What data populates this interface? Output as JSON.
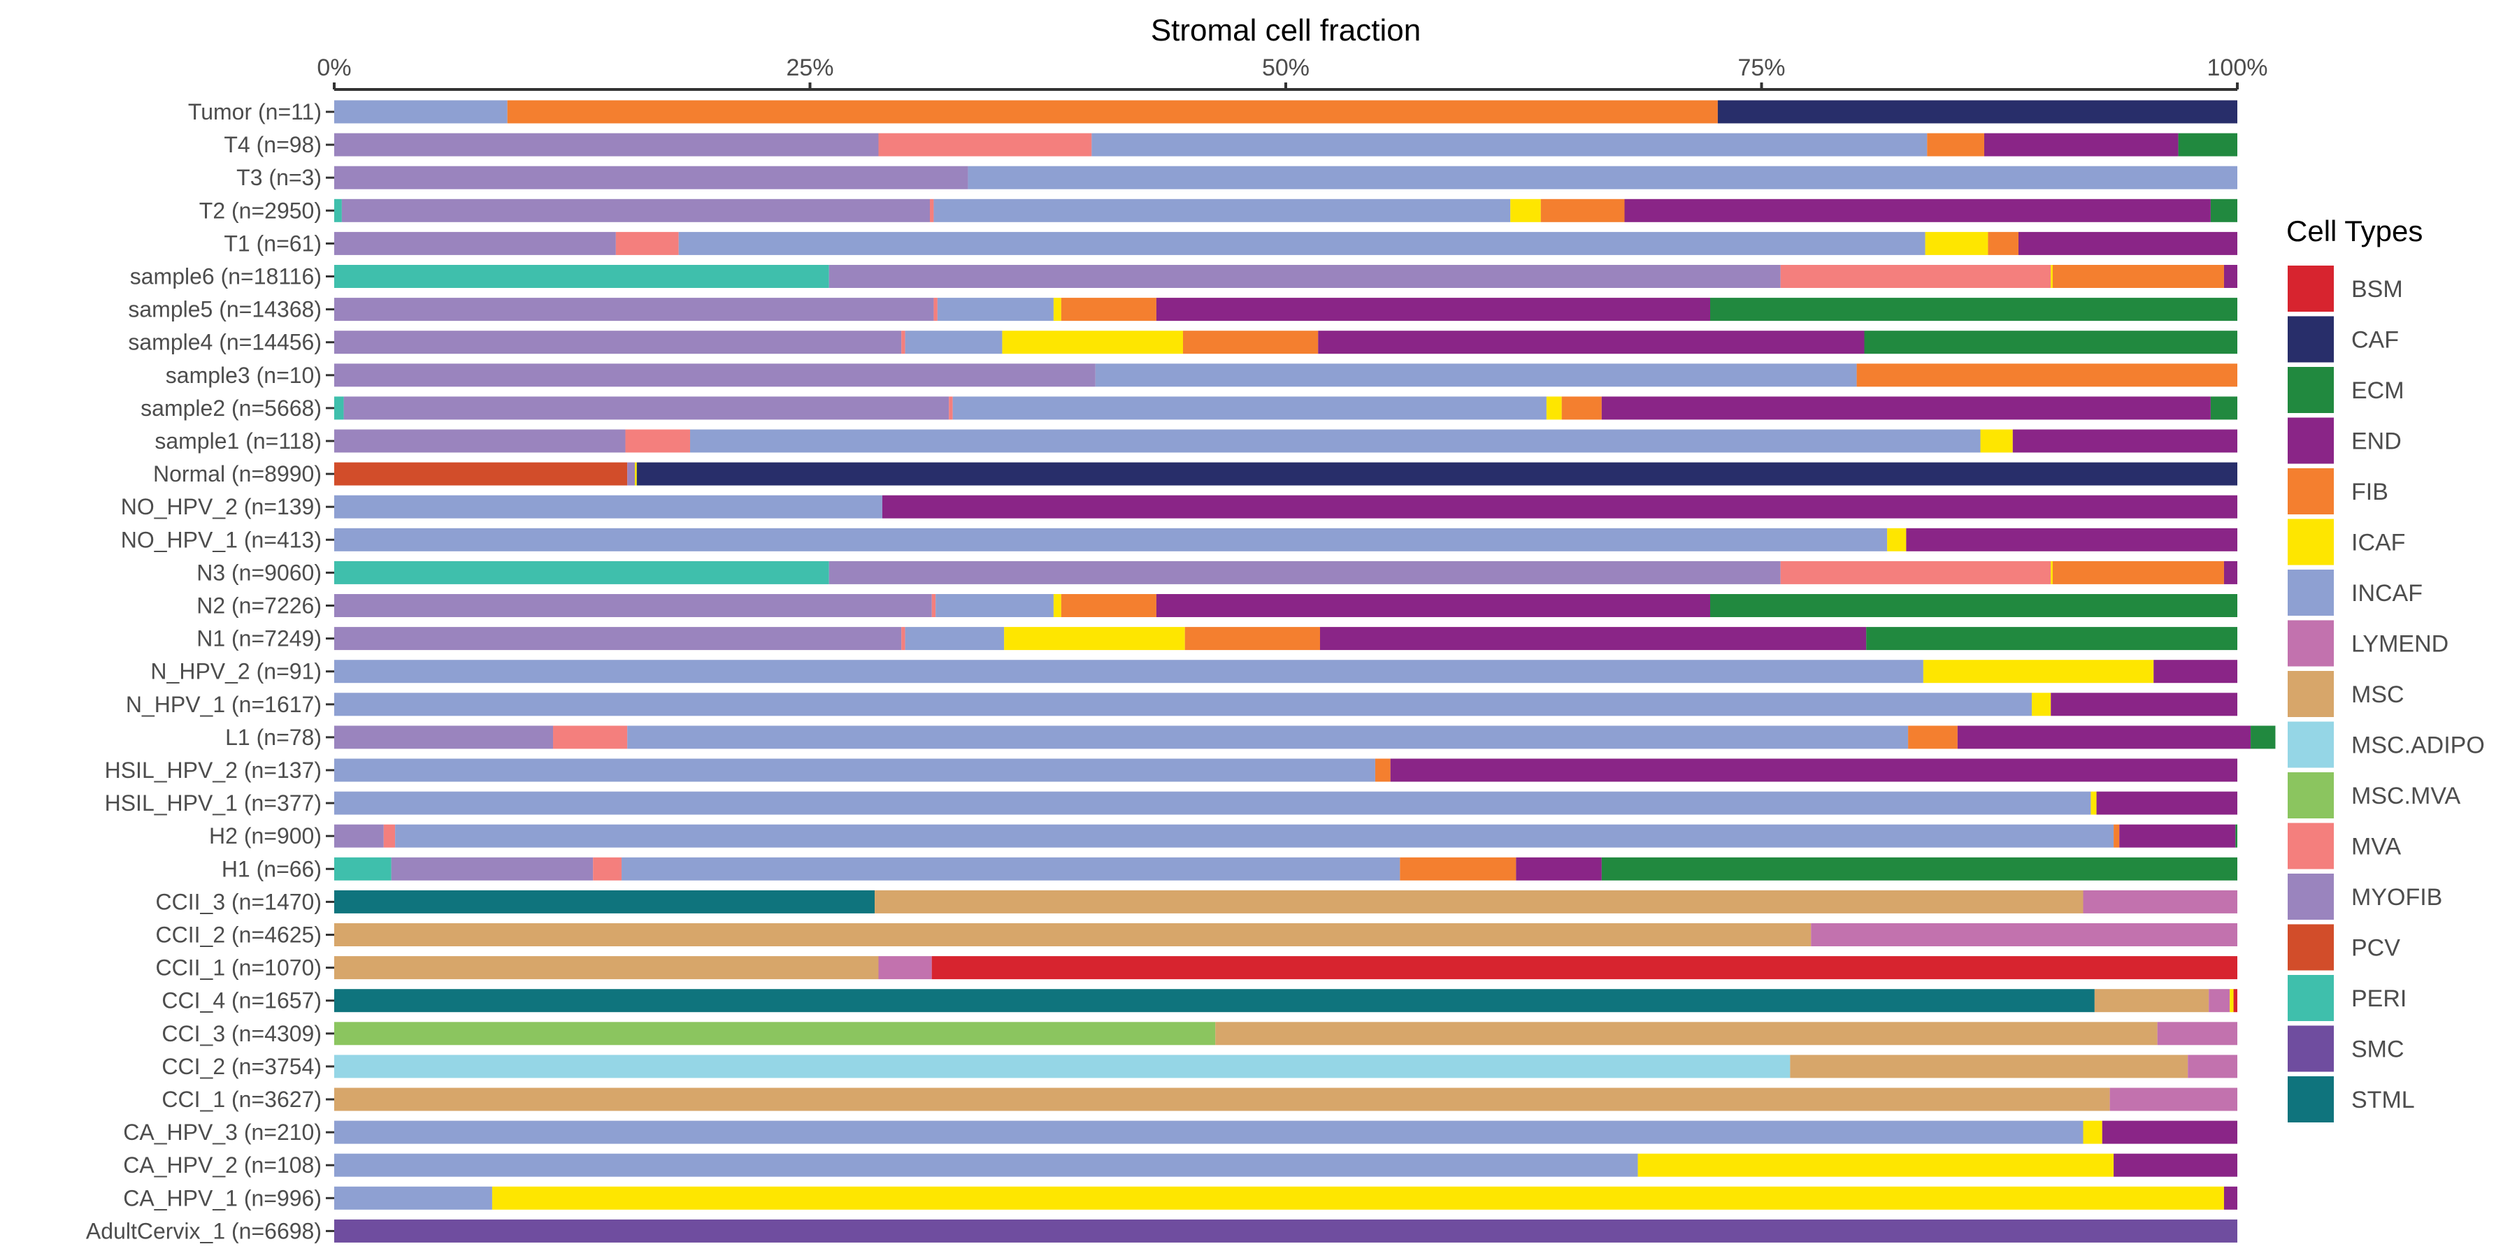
{
  "chart_data": {
    "type": "bar",
    "orientation": "horizontal",
    "stacked": true,
    "title": "Stromal cell fraction",
    "axis_position": "top",
    "xlim": [
      0,
      100
    ],
    "x_ticks": [
      0,
      25,
      50,
      75,
      100
    ],
    "x_tick_labels": [
      "0%",
      "25%",
      "50%",
      "75%",
      "100%"
    ],
    "legend": {
      "title": "Cell Types",
      "position": "right",
      "entries": [
        {
          "name": "BSM",
          "color": "#d7242f"
        },
        {
          "name": "CAF",
          "color": "#282e6a"
        },
        {
          "name": "ECM",
          "color": "#21893f"
        },
        {
          "name": "END",
          "color": "#8a2587"
        },
        {
          "name": "FIB",
          "color": "#f47f2f"
        },
        {
          "name": "ICAF",
          "color": "#fee600"
        },
        {
          "name": "INCAF",
          "color": "#8ea0d2"
        },
        {
          "name": "LYMEND",
          "color": "#c272ae"
        },
        {
          "name": "MSC",
          "color": "#d7a66a"
        },
        {
          "name": "MSC.ADIPO",
          "color": "#95d6e6"
        },
        {
          "name": "MSC.MVA",
          "color": "#8bc55f"
        },
        {
          "name": "MVA",
          "color": "#f47f7d"
        },
        {
          "name": "MYOFIB",
          "color": "#9a84be"
        },
        {
          "name": "PCV",
          "color": "#d24d2a"
        },
        {
          "name": "PERI",
          "color": "#3fbfac"
        },
        {
          "name": "SMC",
          "color": "#6f4d9f"
        },
        {
          "name": "STML",
          "color": "#0f747d"
        }
      ]
    },
    "categories": [
      "Tumor (n=11)",
      "T4 (n=98)",
      "T3 (n=3)",
      "T2 (n=2950)",
      "T1 (n=61)",
      "sample6 (n=18116)",
      "sample5 (n=14368)",
      "sample4 (n=14456)",
      "sample3 (n=10)",
      "sample2 (n=5668)",
      "sample1 (n=118)",
      "Normal (n=8990)",
      "NO_HPV_2 (n=139)",
      "NO_HPV_1 (n=413)",
      "N3 (n=9060)",
      "N2 (n=7226)",
      "N1 (n=7249)",
      "N_HPV_2 (n=91)",
      "N_HPV_1 (n=1617)",
      "L1 (n=78)",
      "HSIL_HPV_2 (n=137)",
      "HSIL_HPV_1 (n=377)",
      "H2 (n=900)",
      "H1 (n=66)",
      "CCII_3 (n=1470)",
      "CCII_2 (n=4625)",
      "CCII_1 (n=1070)",
      "CCI_4 (n=1657)",
      "CCI_3 (n=4309)",
      "CCI_2 (n=3754)",
      "CCI_1 (n=3627)",
      "CA_HPV_3 (n=210)",
      "CA_HPV_2 (n=108)",
      "CA_HPV_1 (n=996)",
      "AdultCervix_1 (n=6698)"
    ],
    "bars": [
      [
        [
          "INCAF",
          9.1
        ],
        [
          "FIB",
          63.6
        ],
        [
          "CAF",
          27.3
        ]
      ],
      [
        [
          "MYOFIB",
          28.6
        ],
        [
          "MVA",
          11.2
        ],
        [
          "INCAF",
          43.9
        ],
        [
          "FIB",
          3.0
        ],
        [
          "END",
          10.2
        ],
        [
          "ECM",
          3.1
        ]
      ],
      [
        [
          "MYOFIB",
          33.3
        ],
        [
          "INCAF",
          66.7
        ]
      ],
      [
        [
          "PERI",
          0.4
        ],
        [
          "MYOFIB",
          30.9
        ],
        [
          "MVA",
          0.2
        ],
        [
          "INCAF",
          30.3
        ],
        [
          "ICAF",
          1.6
        ],
        [
          "FIB",
          4.4
        ],
        [
          "END",
          30.8
        ],
        [
          "ECM",
          1.4
        ]
      ],
      [
        [
          "MYOFIB",
          14.8
        ],
        [
          "MVA",
          3.3
        ],
        [
          "INCAF",
          65.5
        ],
        [
          "ICAF",
          3.3
        ],
        [
          "FIB",
          1.6
        ],
        [
          "END",
          11.5
        ]
      ],
      [
        [
          "PERI",
          26.0
        ],
        [
          "MYOFIB",
          50.0
        ],
        [
          "MVA",
          14.2
        ],
        [
          "ICAF",
          0.1
        ],
        [
          "FIB",
          9.0
        ],
        [
          "END",
          0.7
        ]
      ],
      [
        [
          "MYOFIB",
          31.5
        ],
        [
          "MVA",
          0.2
        ],
        [
          "INCAF",
          6.1
        ],
        [
          "ICAF",
          0.4
        ],
        [
          "FIB",
          5.0
        ],
        [
          "END",
          29.1
        ],
        [
          "ECM",
          27.7
        ]
      ],
      [
        [
          "MYOFIB",
          29.8
        ],
        [
          "MVA",
          0.2
        ],
        [
          "INCAF",
          5.1
        ],
        [
          "ICAF",
          9.5
        ],
        [
          "FIB",
          7.1
        ],
        [
          "END",
          28.7
        ],
        [
          "ECM",
          19.6
        ]
      ],
      [
        [
          "MYOFIB",
          40.0
        ],
        [
          "INCAF",
          40.0
        ],
        [
          "FIB",
          20.0
        ]
      ],
      [
        [
          "PERI",
          0.5
        ],
        [
          "MYOFIB",
          31.8
        ],
        [
          "MVA",
          0.2
        ],
        [
          "INCAF",
          31.2
        ],
        [
          "ICAF",
          0.8
        ],
        [
          "FIB",
          2.1
        ],
        [
          "END",
          32.0
        ],
        [
          "ECM",
          1.4
        ]
      ],
      [
        [
          "MYOFIB",
          15.3
        ],
        [
          "MVA",
          3.4
        ],
        [
          "INCAF",
          67.8
        ],
        [
          "ICAF",
          1.7
        ],
        [
          "END",
          11.8
        ]
      ],
      [
        [
          "PCV",
          15.4
        ],
        [
          "MYOFIB",
          0.4
        ],
        [
          "ICAF",
          0.1
        ],
        [
          "CAF",
          84.1
        ]
      ],
      [
        [
          "INCAF",
          28.8
        ],
        [
          "END",
          71.2
        ]
      ],
      [
        [
          "INCAF",
          81.6
        ],
        [
          "ICAF",
          1.0
        ],
        [
          "END",
          17.4
        ]
      ],
      [
        [
          "PERI",
          26.0
        ],
        [
          "MYOFIB",
          50.0
        ],
        [
          "MVA",
          14.2
        ],
        [
          "ICAF",
          0.1
        ],
        [
          "FIB",
          9.0
        ],
        [
          "END",
          0.7
        ]
      ],
      [
        [
          "MYOFIB",
          31.4
        ],
        [
          "MVA",
          0.2
        ],
        [
          "INCAF",
          6.2
        ],
        [
          "ICAF",
          0.4
        ],
        [
          "FIB",
          5.0
        ],
        [
          "END",
          29.1
        ],
        [
          "ECM",
          27.7
        ]
      ],
      [
        [
          "MYOFIB",
          29.8
        ],
        [
          "MVA",
          0.2
        ],
        [
          "INCAF",
          5.2
        ],
        [
          "ICAF",
          9.5
        ],
        [
          "FIB",
          7.1
        ],
        [
          "END",
          28.7
        ],
        [
          "ECM",
          19.5
        ]
      ],
      [
        [
          "INCAF",
          83.5
        ],
        [
          "ICAF",
          12.1
        ],
        [
          "END",
          4.4
        ]
      ],
      [
        [
          "INCAF",
          89.2
        ],
        [
          "ICAF",
          1.0
        ],
        [
          "END",
          9.8
        ]
      ],
      [
        [
          "MYOFIB",
          11.5
        ],
        [
          "MVA",
          3.9
        ],
        [
          "INCAF",
          67.3
        ],
        [
          "FIB",
          2.6
        ],
        [
          "END",
          15.4
        ],
        [
          "ECM",
          1.3
        ]
      ],
      [
        [
          "INCAF",
          54.7
        ],
        [
          "FIB",
          0.8
        ],
        [
          "END",
          44.5
        ]
      ],
      [
        [
          "INCAF",
          92.3
        ],
        [
          "ICAF",
          0.3
        ],
        [
          "END",
          7.4
        ]
      ],
      [
        [
          "MYOFIB",
          2.6
        ],
        [
          "MVA",
          0.6
        ],
        [
          "INCAF",
          90.3
        ],
        [
          "FIB",
          0.3
        ],
        [
          "END",
          6.1
        ],
        [
          "ECM",
          0.1
        ]
      ],
      [
        [
          "PERI",
          3.0
        ],
        [
          "MYOFIB",
          10.6
        ],
        [
          "MVA",
          1.5
        ],
        [
          "INCAF",
          40.9
        ],
        [
          "FIB",
          6.1
        ],
        [
          "END",
          4.5
        ],
        [
          "ECM",
          33.4
        ]
      ],
      [
        [
          "STML",
          28.4
        ],
        [
          "MSC",
          63.5
        ],
        [
          "LYMEND",
          8.1
        ]
      ],
      [
        [
          "MSC",
          77.6
        ],
        [
          "LYMEND",
          22.4
        ]
      ],
      [
        [
          "MSC",
          28.6
        ],
        [
          "LYMEND",
          2.8
        ],
        [
          "BSM",
          68.6
        ]
      ],
      [
        [
          "STML",
          92.5
        ],
        [
          "MSC",
          6.0
        ],
        [
          "LYMEND",
          1.1
        ],
        [
          "ICAF",
          0.2
        ],
        [
          "BSM",
          0.2
        ]
      ],
      [
        [
          "MSC.MVA",
          46.3
        ],
        [
          "MSC",
          49.5
        ],
        [
          "LYMEND",
          4.2
        ]
      ],
      [
        [
          "MSC.ADIPO",
          76.5
        ],
        [
          "MSC",
          20.9
        ],
        [
          "LYMEND",
          2.6
        ]
      ],
      [
        [
          "MSC",
          93.3
        ],
        [
          "LYMEND",
          6.7
        ]
      ],
      [
        [
          "INCAF",
          91.9
        ],
        [
          "ICAF",
          1.0
        ],
        [
          "END",
          7.1
        ]
      ],
      [
        [
          "INCAF",
          68.5
        ],
        [
          "ICAF",
          25.0
        ],
        [
          "END",
          6.5
        ]
      ],
      [
        [
          "INCAF",
          8.3
        ],
        [
          "ICAF",
          91.0
        ],
        [
          "END",
          0.7
        ]
      ],
      [
        [
          "SMC",
          100.0
        ]
      ]
    ]
  }
}
